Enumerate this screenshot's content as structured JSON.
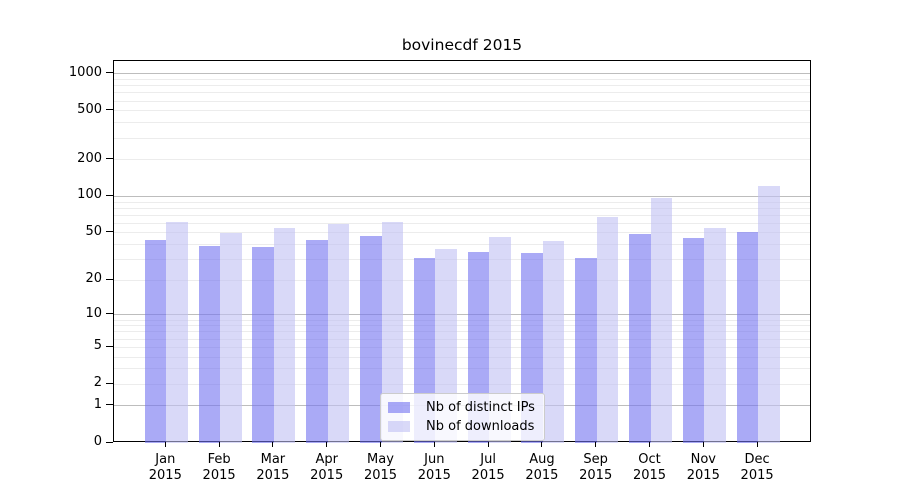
{
  "title": "bovinecdf 2015",
  "chart_data": {
    "type": "bar",
    "title": "bovinecdf 2015",
    "x_categories": [
      "Jan",
      "Feb",
      "Mar",
      "Apr",
      "May",
      "Jun",
      "Jul",
      "Aug",
      "Sep",
      "Oct",
      "Nov",
      "Dec"
    ],
    "x_year": "2015",
    "series": [
      {
        "name": "Nb of distinct IPs",
        "color": "rgba(113,113,240,0.6)",
        "values": [
          44,
          39,
          38,
          44,
          47,
          31,
          35,
          34,
          31,
          49,
          45,
          51
        ]
      },
      {
        "name": "Nb of downloads",
        "color": "rgba(192,192,243,0.6)",
        "values": [
          62,
          50,
          55,
          59,
          62,
          37,
          46,
          43,
          68,
          97,
          55,
          122
        ]
      }
    ],
    "yscale": "log1p",
    "ylim": [
      0,
      1250
    ],
    "y_ticks": [
      1000,
      500,
      200,
      100,
      50,
      20,
      10,
      5,
      2,
      1,
      0
    ],
    "y_major_gridlines": [
      1,
      10,
      100,
      1000
    ],
    "y_minor_gridlines": [
      2,
      3,
      4,
      5,
      6,
      7,
      8,
      9,
      20,
      30,
      40,
      50,
      60,
      70,
      80,
      90,
      200,
      300,
      400,
      500,
      600,
      700,
      800,
      900
    ],
    "grid": "on",
    "legend_position": "lower center",
    "xlabel": "",
    "ylabel": ""
  },
  "colors": {
    "background": "#ffffff",
    "axis": "#000000",
    "text": "#000000",
    "grid_major": "#bdbdbd",
    "grid_minor": "#ececec",
    "bar_distinct_ips": "rgba(113,113,240,0.6)",
    "bar_downloads": "rgba(192,192,243,0.6)",
    "legend_background": "rgba(255,255,255,0.8)",
    "legend_border": "#cccccc"
  }
}
